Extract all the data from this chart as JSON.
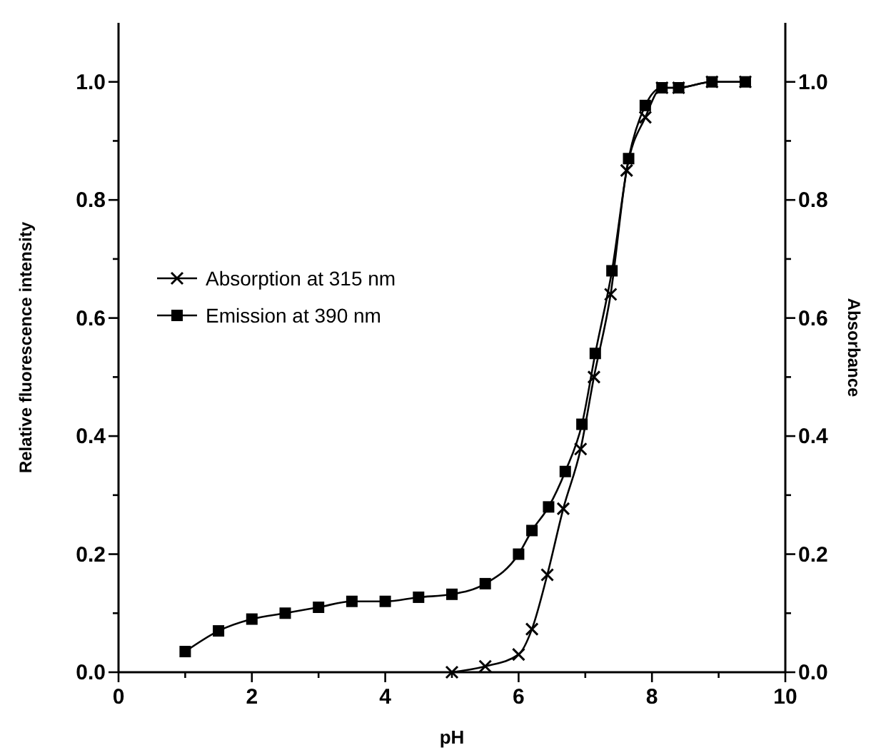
{
  "chart_data": {
    "type": "line",
    "xlabel": "pH",
    "ylabel": "Relative fluorescence intensity",
    "y2label": "Absorbance",
    "xlim": [
      0,
      10
    ],
    "ylim": [
      0,
      1.1
    ],
    "y2lim": [
      0,
      1.1
    ],
    "xticks": [
      0,
      {
        "value": 1,
        "label": null
      },
      2,
      {
        "value": 3,
        "label": null
      },
      4,
      {
        "value": 5,
        "label": null
      },
      6,
      {
        "value": 7,
        "label": null
      },
      8,
      {
        "value": 9,
        "label": null
      },
      10
    ],
    "yticks": [
      {
        "value": 0,
        "label": "0.0"
      },
      {
        "value": 0.1,
        "label": null
      },
      {
        "value": 0.2,
        "label": "0.2"
      },
      {
        "value": 0.3,
        "label": null
      },
      {
        "value": 0.4,
        "label": "0.4"
      },
      {
        "value": 0.5,
        "label": null
      },
      {
        "value": 0.6,
        "label": "0.6"
      },
      {
        "value": 0.7,
        "label": null
      },
      {
        "value": 0.8,
        "label": "0.8"
      },
      {
        "value": 0.9,
        "label": null
      },
      {
        "value": 1,
        "label": "1.0"
      }
    ],
    "y2ticks": [
      {
        "value": 0,
        "label": "0.0"
      },
      {
        "value": 0.1,
        "label": null
      },
      {
        "value": 0.2,
        "label": "0.2"
      },
      {
        "value": 0.3,
        "label": null
      },
      {
        "value": 0.4,
        "label": "0.4"
      },
      {
        "value": 0.5,
        "label": null
      },
      {
        "value": 0.6,
        "label": "0.6"
      },
      {
        "value": 0.7,
        "label": null
      },
      {
        "value": 0.8,
        "label": "0.8"
      },
      {
        "value": 0.9,
        "label": null
      },
      {
        "value": 1,
        "label": "1.0"
      }
    ],
    "legend": "left",
    "grid": false,
    "series": [
      {
        "name": "Absorption at 315 nm",
        "color": "#000000",
        "marker": "cross",
        "x": [
          5,
          5.5,
          6,
          6.2,
          6.43,
          6.67,
          6.93,
          7.13,
          7.38,
          7.62,
          7.9,
          8.15,
          8.4,
          8.9,
          9.4
        ],
        "values": [
          0,
          0.01,
          0.03,
          0.073,
          0.165,
          0.277,
          0.378,
          0.5,
          0.64,
          0.85,
          0.94,
          0.99,
          0.99,
          1,
          1
        ]
      },
      {
        "name": "Emission at 390 nm",
        "color": "#000000",
        "marker": "square",
        "x": [
          1,
          1.5,
          2,
          2.5,
          3,
          3.5,
          4,
          4.5,
          5,
          5.5,
          6,
          6.2,
          6.45,
          6.7,
          6.95,
          7.15,
          7.4,
          7.65,
          7.9,
          8.15,
          8.4,
          8.9,
          9.4
        ],
        "values": [
          0.035,
          0.07,
          0.09,
          0.1,
          0.11,
          0.12,
          0.12,
          0.127,
          0.132,
          0.15,
          0.2,
          0.24,
          0.28,
          0.34,
          0.42,
          0.54,
          0.68,
          0.87,
          0.96,
          0.99,
          0.99,
          1,
          1
        ]
      }
    ]
  }
}
